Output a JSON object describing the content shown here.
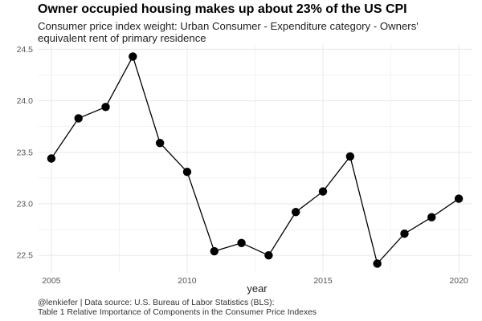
{
  "chart_data": {
    "type": "line",
    "title": "Owner occupied housing makes up about 23% of the US CPI",
    "subtitle": "Consumer price index weight: Urban Consumer - Expenditure category - Owners' equivalent rent of primary residence",
    "xlabel": "year",
    "ylabel": "",
    "caption": "@lenkiefer | Data source: U.S. Bureau of Labor Statistics (BLS):\nTable 1 Relative Importance of Components in the Consumer Price Indexes",
    "x": [
      2005,
      2006,
      2007,
      2008,
      2009,
      2010,
      2011,
      2012,
      2013,
      2014,
      2015,
      2016,
      2017,
      2018,
      2019,
      2020
    ],
    "series": [
      {
        "values": [
          23.44,
          23.83,
          23.94,
          24.43,
          23.59,
          23.31,
          22.54,
          22.62,
          22.5,
          22.92,
          23.12,
          23.46,
          22.42,
          22.71,
          22.87,
          23.05
        ]
      }
    ],
    "xticks": [
      "2005",
      "2010",
      "2015",
      "2020"
    ],
    "yticks": [
      "22.5",
      "23.0",
      "23.5",
      "24.0",
      "24.5"
    ],
    "xlim": [
      2004.5,
      2020.5
    ],
    "ylim": [
      22.33,
      24.55
    ],
    "grid": true,
    "colors": {
      "line": "#000000",
      "point": "#000000",
      "grid": "#ebebeb"
    }
  }
}
